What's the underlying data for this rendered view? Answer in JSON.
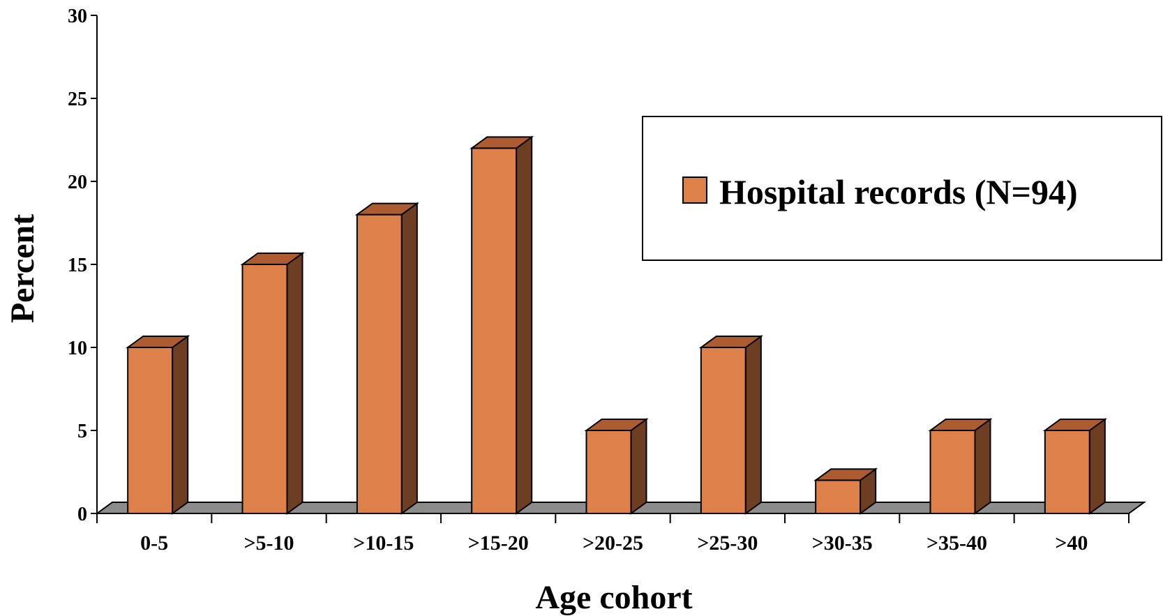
{
  "chart_data": {
    "type": "bar",
    "xlabel": "Age cohort",
    "ylabel": "Percent",
    "ylim": [
      0,
      30
    ],
    "yticks": [
      0,
      5,
      10,
      15,
      20,
      25,
      30
    ],
    "categories": [
      "0-5",
      ">5-10",
      ">10-15",
      ">15-20",
      ">20-25",
      ">25-30",
      ">30-35",
      ">35-40",
      ">40"
    ],
    "series": [
      {
        "name": "Hospital records (N=94)",
        "values": [
          10,
          15,
          18,
          22,
          5,
          10,
          2,
          5,
          5
        ]
      }
    ],
    "legend_position": "top-right",
    "grid": false,
    "colors": {
      "bar_front": "#dd8049",
      "bar_side": "#6e3e22",
      "bar_top": "#ad5c31",
      "floor": "#8c8c8c"
    }
  }
}
